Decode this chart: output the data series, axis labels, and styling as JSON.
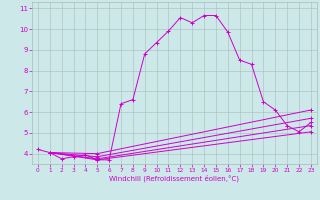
{
  "xlabel": "Windchill (Refroidissement éolien,°C)",
  "bg_color": "#cce8e8",
  "line_color": "#cc00cc",
  "xlim": [
    -0.5,
    23.5
  ],
  "ylim": [
    3.5,
    11.3
  ],
  "xticks": [
    0,
    1,
    2,
    3,
    4,
    5,
    6,
    7,
    8,
    9,
    10,
    11,
    12,
    13,
    14,
    15,
    16,
    17,
    18,
    19,
    20,
    21,
    22,
    23
  ],
  "yticks": [
    4,
    5,
    6,
    7,
    8,
    9,
    10,
    11
  ],
  "series": [
    [
      0,
      4.2
    ],
    [
      1,
      4.05
    ],
    [
      2,
      3.75
    ],
    [
      3,
      3.85
    ],
    [
      4,
      3.95
    ],
    [
      5,
      3.7
    ],
    [
      6,
      3.7
    ],
    [
      7,
      6.4
    ],
    [
      8,
      6.6
    ],
    [
      9,
      8.8
    ],
    [
      10,
      9.35
    ],
    [
      11,
      9.9
    ],
    [
      12,
      10.55
    ],
    [
      13,
      10.3
    ],
    [
      14,
      10.65
    ],
    [
      15,
      10.65
    ],
    [
      16,
      9.85
    ],
    [
      17,
      8.5
    ],
    [
      18,
      8.3
    ],
    [
      19,
      6.5
    ],
    [
      20,
      6.1
    ],
    [
      21,
      5.35
    ],
    [
      22,
      5.05
    ],
    [
      23,
      5.5
    ]
  ],
  "fan_lines": [
    [
      [
        1,
        4.05
      ],
      [
        5,
        3.7
      ],
      [
        23,
        5.05
      ]
    ],
    [
      [
        1,
        4.05
      ],
      [
        5,
        3.75
      ],
      [
        23,
        5.35
      ]
    ],
    [
      [
        1,
        4.05
      ],
      [
        5,
        3.85
      ],
      [
        23,
        5.7
      ]
    ],
    [
      [
        1,
        4.05
      ],
      [
        5,
        4.0
      ],
      [
        23,
        6.1
      ]
    ]
  ]
}
